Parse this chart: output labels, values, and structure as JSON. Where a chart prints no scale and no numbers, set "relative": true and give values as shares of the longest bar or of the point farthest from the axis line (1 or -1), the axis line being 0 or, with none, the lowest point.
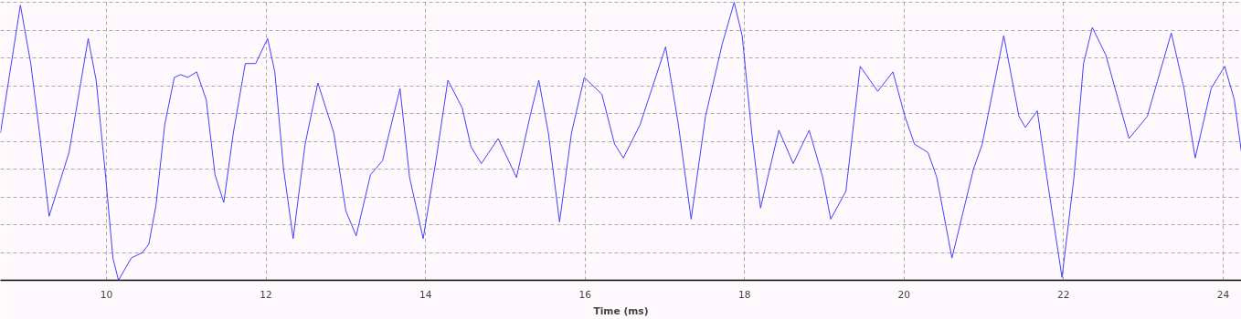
{
  "chart_data": {
    "type": "line",
    "xlabel": "Time (ms)",
    "relative": true,
    "grid": true,
    "marker": "none",
    "line_style": "solid",
    "xlim": [
      8.67,
      24.23
    ],
    "xticks": [
      10,
      12,
      14,
      16,
      18,
      20,
      22,
      24
    ],
    "series": [
      {
        "color": "#4040ff",
        "x": [
          8.67,
          8.92,
          9.05,
          9.16,
          9.28,
          9.53,
          9.77,
          9.87,
          9.99,
          10.08,
          10.15,
          10.31,
          10.45,
          10.53,
          10.62,
          10.73,
          10.85,
          10.93,
          11.02,
          11.13,
          11.25,
          11.36,
          11.47,
          11.59,
          11.74,
          11.87,
          12.02,
          12.11,
          12.22,
          12.34,
          12.49,
          12.65,
          12.85,
          13.0,
          13.13,
          13.31,
          13.46,
          13.68,
          13.8,
          13.97,
          14.13,
          14.28,
          14.46,
          14.57,
          14.7,
          14.91,
          15.14,
          15.31,
          15.42,
          15.54,
          15.68,
          15.83,
          15.99,
          16.21,
          16.37,
          16.48,
          16.69,
          17.01,
          17.17,
          17.33,
          17.51,
          17.72,
          17.87,
          17.97,
          18.09,
          18.2,
          18.43,
          18.61,
          18.81,
          18.98,
          19.08,
          19.27,
          19.45,
          19.67,
          19.86,
          20.01,
          20.13,
          20.3,
          20.41,
          20.6,
          20.87,
          20.98,
          21.25,
          21.44,
          21.52,
          21.67,
          21.79,
          21.98,
          22.13,
          22.25,
          22.36,
          22.53,
          22.82,
          23.05,
          23.35,
          23.51,
          23.65,
          23.85,
          24.02,
          24.14,
          24.23
        ],
        "values": [
          0.53,
          0.99,
          0.78,
          0.53,
          0.23,
          0.46,
          0.87,
          0.72,
          0.37,
          0.08,
          0.0,
          0.08,
          0.1,
          0.13,
          0.27,
          0.56,
          0.73,
          0.74,
          0.73,
          0.75,
          0.65,
          0.38,
          0.28,
          0.53,
          0.78,
          0.78,
          0.87,
          0.75,
          0.4,
          0.15,
          0.49,
          0.71,
          0.53,
          0.25,
          0.16,
          0.38,
          0.43,
          0.69,
          0.37,
          0.15,
          0.43,
          0.72,
          0.62,
          0.48,
          0.42,
          0.51,
          0.37,
          0.59,
          0.72,
          0.53,
          0.21,
          0.53,
          0.73,
          0.67,
          0.49,
          0.44,
          0.56,
          0.84,
          0.56,
          0.22,
          0.59,
          0.85,
          1.0,
          0.88,
          0.53,
          0.26,
          0.54,
          0.42,
          0.54,
          0.37,
          0.22,
          0.32,
          0.77,
          0.68,
          0.75,
          0.59,
          0.49,
          0.46,
          0.37,
          0.08,
          0.4,
          0.49,
          0.88,
          0.59,
          0.55,
          0.61,
          0.37,
          0.01,
          0.37,
          0.78,
          0.91,
          0.81,
          0.51,
          0.59,
          0.89,
          0.69,
          0.44,
          0.69,
          0.77,
          0.65,
          0.46
        ]
      }
    ]
  }
}
